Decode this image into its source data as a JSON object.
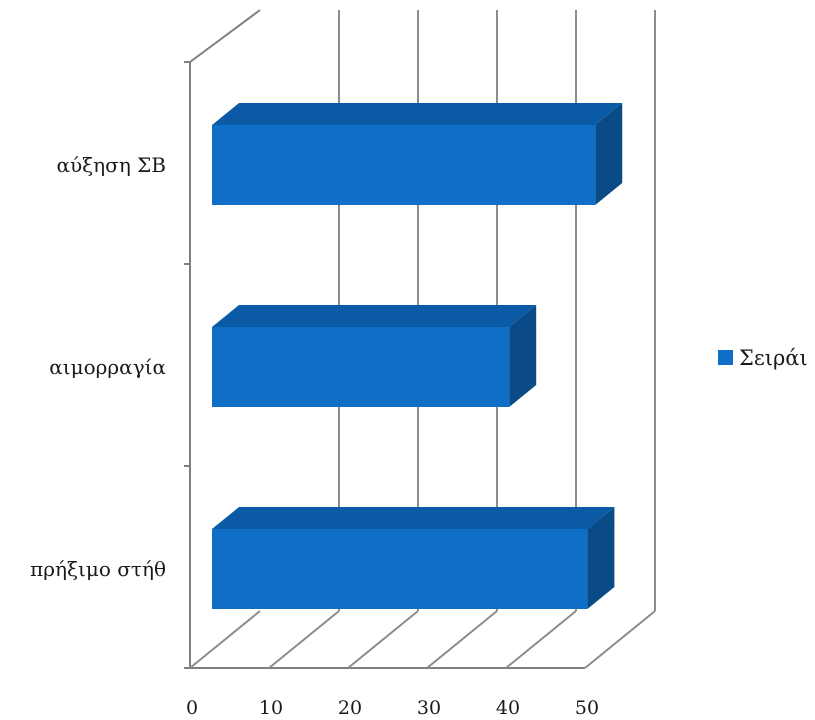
{
  "chart_data": {
    "type": "bar",
    "orientation": "horizontal",
    "three_d": true,
    "categories": [
      "αύξηση ΣΒ",
      "αιμορραγία",
      "πρήξιμο στήθ"
    ],
    "series": [
      {
        "name": "Σειράι",
        "values": [
          49,
          38,
          48
        ],
        "color": "#0F6FC6"
      }
    ],
    "xlim": [
      0,
      50
    ],
    "xticks": [
      "0",
      "10",
      "20",
      "30",
      "40",
      "50"
    ],
    "grid": true,
    "legend": "right"
  }
}
